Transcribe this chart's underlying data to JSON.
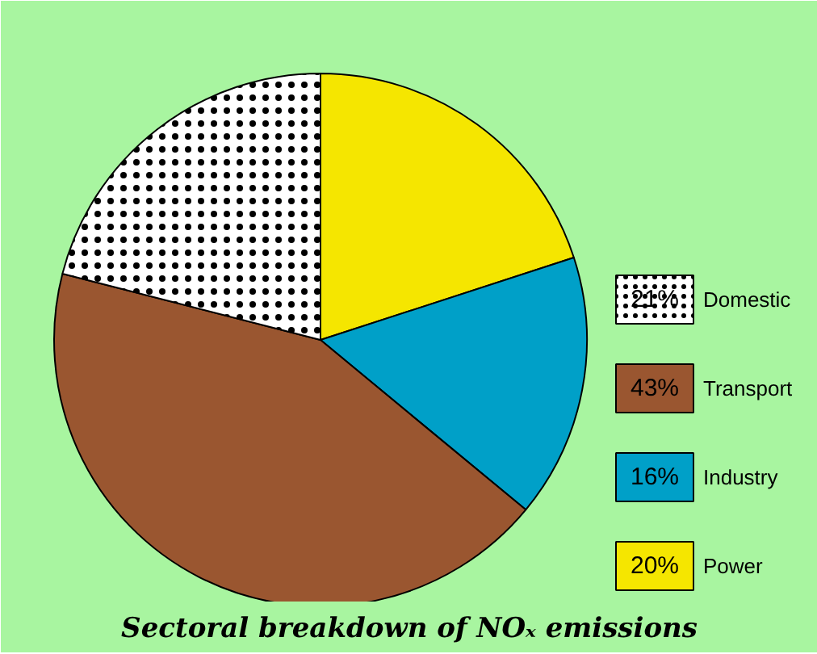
{
  "chart_data": {
    "type": "pie",
    "title": "Sectoral breakdown of NOₓ emissions",
    "categories": [
      "Power",
      "Industry",
      "Transport",
      "Domestic"
    ],
    "values": [
      20,
      16,
      43,
      21
    ],
    "colors": [
      "#f5e600",
      "#00a0c8",
      "#9a5630",
      "#ffffff"
    ],
    "value_labels": [
      "20%",
      "16%",
      "43%",
      "21%"
    ],
    "legend": "right"
  }
}
